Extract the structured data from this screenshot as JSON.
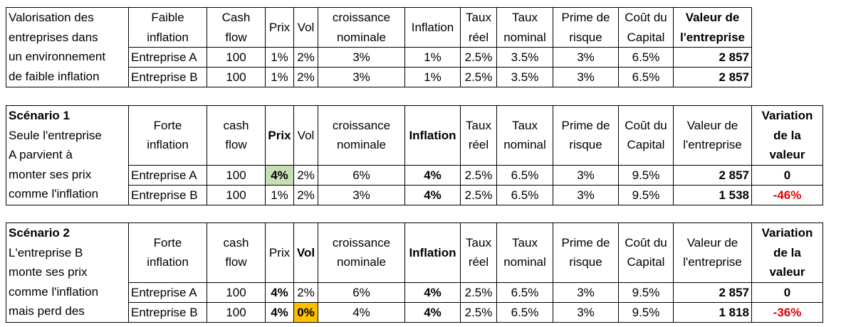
{
  "table1": {
    "desc": [
      "Valorisation des",
      "entreprises dans",
      "un environnement",
      "de faible inflation"
    ],
    "headers": {
      "col1": [
        "Faible",
        "inflation"
      ],
      "cash": [
        "Cash",
        "flow"
      ],
      "prix": "Prix",
      "vol": "Vol",
      "croissance": [
        "croissance",
        "nominale"
      ],
      "inflation": "Inflation",
      "taux_reel": [
        "Taux",
        "réel"
      ],
      "taux_nominal": [
        "Taux",
        "nominal"
      ],
      "prime": [
        "Prime de",
        "risque"
      ],
      "cout": [
        "Coût du",
        "Capital"
      ],
      "valeur": [
        "Valeur de",
        "l'entreprise"
      ]
    },
    "rows": [
      {
        "name": "Entreprise A",
        "cash": "100",
        "prix": "1%",
        "vol": "2%",
        "croissance": "3%",
        "inflation": "1%",
        "taux_reel": "2.5%",
        "taux_nominal": "3.5%",
        "prime": "3%",
        "cout": "6.5%",
        "valeur": "2 857"
      },
      {
        "name": "Entreprise B",
        "cash": "100",
        "prix": "1%",
        "vol": "2%",
        "croissance": "3%",
        "inflation": "1%",
        "taux_reel": "2.5%",
        "taux_nominal": "3.5%",
        "prime": "3%",
        "cout": "6.5%",
        "valeur": "2 857"
      }
    ]
  },
  "table2": {
    "desc": [
      "Scénario 1",
      "Seule l'entreprise",
      "A parvient à",
      "monter ses prix",
      "comme l'inflation"
    ],
    "headers": {
      "col1": [
        "Forte",
        "inflation"
      ],
      "cash": [
        "cash",
        "flow"
      ],
      "prix": "Prix",
      "vol": "Vol",
      "croissance": [
        "croissance",
        "nominale"
      ],
      "inflation": "Inflation",
      "taux_reel": [
        "Taux",
        "réel"
      ],
      "taux_nominal": [
        "Taux",
        "nominal"
      ],
      "prime": [
        "Prime de",
        "risque"
      ],
      "cout": [
        "Coût du",
        "Capital"
      ],
      "valeur": [
        "Valeur de",
        "l'entreprise"
      ],
      "variation": [
        "Variation",
        "de la",
        "valeur"
      ]
    },
    "rows": [
      {
        "name": "Entreprise A",
        "cash": "100",
        "prix": "4%",
        "vol": "2%",
        "croissance": "6%",
        "inflation": "4%",
        "taux_reel": "2.5%",
        "taux_nominal": "6.5%",
        "prime": "3%",
        "cout": "9.5%",
        "valeur": "2 857",
        "variation": "0"
      },
      {
        "name": "Entreprise B",
        "cash": "100",
        "prix": "1%",
        "vol": "2%",
        "croissance": "3%",
        "inflation": "4%",
        "taux_reel": "2.5%",
        "taux_nominal": "6.5%",
        "prime": "3%",
        "cout": "9.5%",
        "valeur": "1 538",
        "variation": "-46%"
      }
    ]
  },
  "table3": {
    "desc": [
      "Scénario 2",
      "L'entreprise B",
      "monte ses prix",
      "comme l'inflation",
      "mais perd des"
    ],
    "headers": {
      "col1": [
        "Forte",
        "inflation"
      ],
      "cash": [
        "cash",
        "flow"
      ],
      "prix": "Prix",
      "vol": "Vol",
      "croissance": [
        "croissance",
        "nominale"
      ],
      "inflation": "Inflation",
      "taux_reel": [
        "Taux",
        "réel"
      ],
      "taux_nominal": [
        "Taux",
        "nominal"
      ],
      "prime": [
        "Prime de",
        "risque"
      ],
      "cout": [
        "Coût du",
        "Capital"
      ],
      "valeur": [
        "Valeur de",
        "l'entreprise"
      ],
      "variation": [
        "Variation",
        "de la",
        "valeur"
      ]
    },
    "rows": [
      {
        "name": "Entreprise A",
        "cash": "100",
        "prix": "4%",
        "vol": "2%",
        "croissance": "6%",
        "inflation": "4%",
        "taux_reel": "2.5%",
        "taux_nominal": "6.5%",
        "prime": "3%",
        "cout": "9.5%",
        "valeur": "2 857",
        "variation": "0"
      },
      {
        "name": "Entreprise B",
        "cash": "100",
        "prix": "4%",
        "vol": "0%",
        "croissance": "4%",
        "inflation": "4%",
        "taux_reel": "2.5%",
        "taux_nominal": "6.5%",
        "prime": "3%",
        "cout": "9.5%",
        "valeur": "1 818",
        "variation": "-36%"
      }
    ]
  },
  "colors": {
    "green_highlight": "#c6e0b4",
    "orange_highlight": "#ffc000",
    "negative_red": "#e00000"
  }
}
